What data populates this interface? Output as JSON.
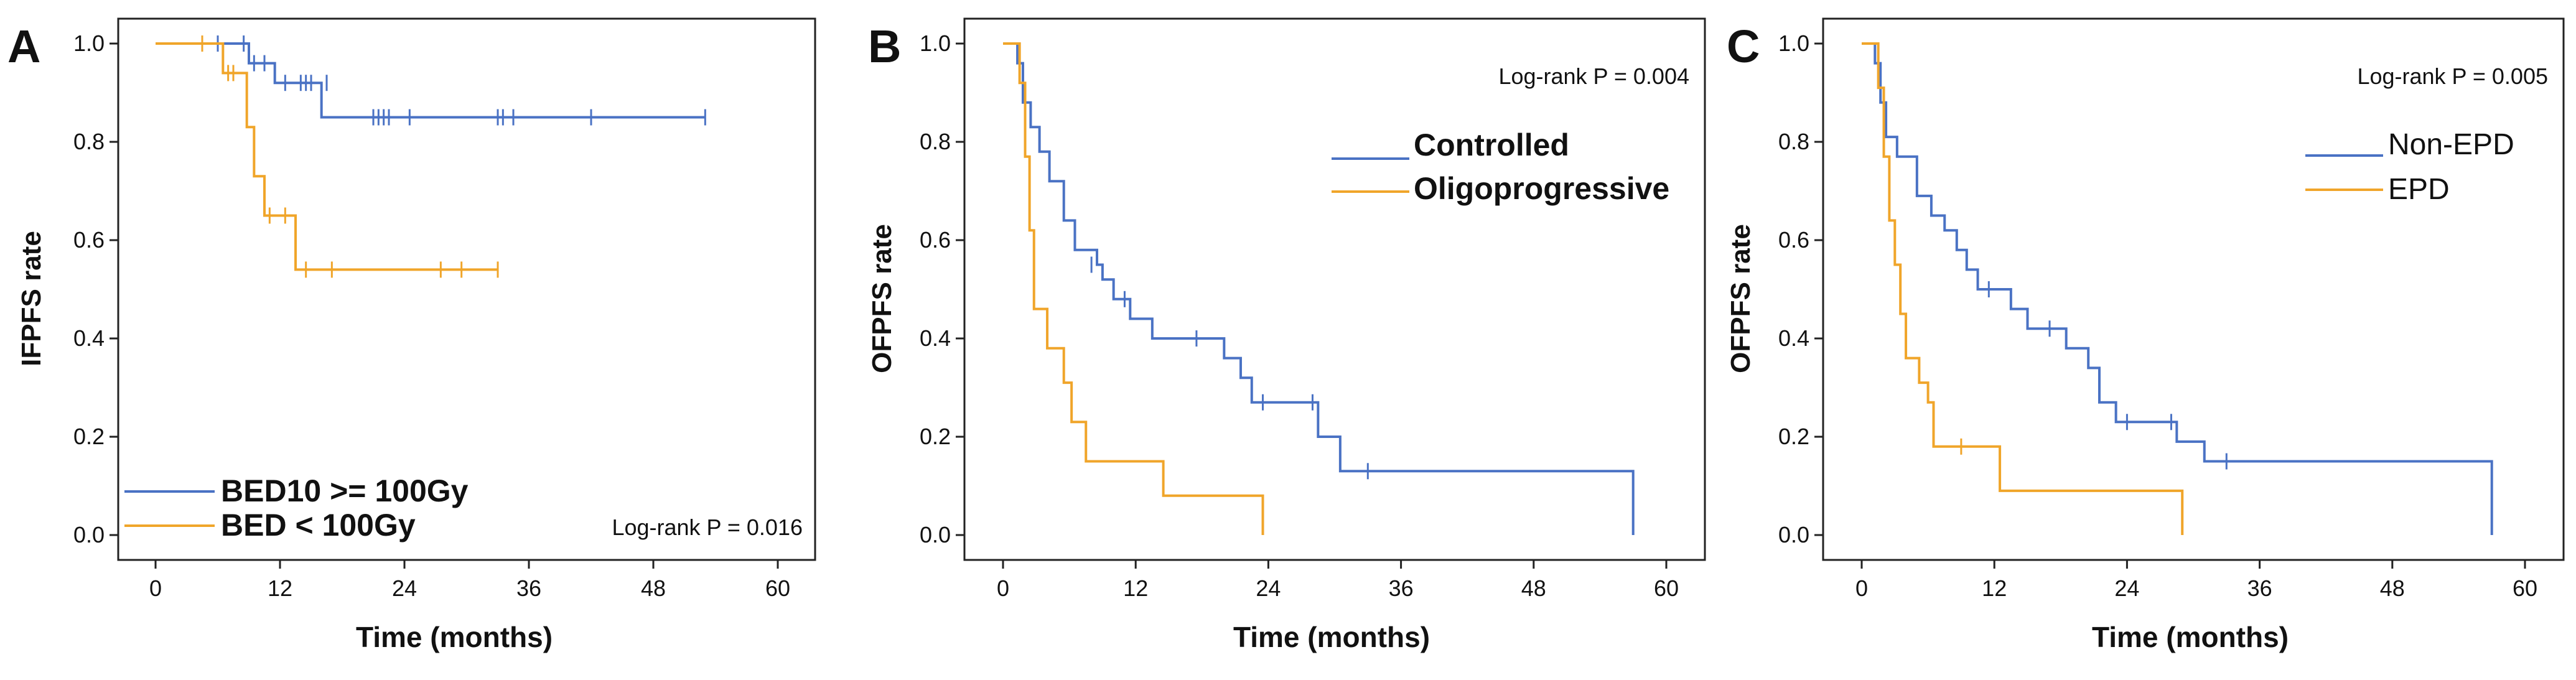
{
  "chart_data": [
    {
      "type": "line",
      "subtype": "kaplan-meier",
      "panel": "A",
      "xlabel": "Time (months)",
      "ylabel": "IFPFS rate",
      "xlim": [
        0,
        60
      ],
      "ylim": [
        0,
        1
      ],
      "xticks": [
        "0",
        "12",
        "24",
        "36",
        "48",
        "60"
      ],
      "yticks": [
        "0.0",
        "0.2",
        "0.4",
        "0.6",
        "0.8",
        "1.0"
      ],
      "pvalue": "Log-rank P = 0.016",
      "legend_position": "bottom-left",
      "series": [
        {
          "name": "BED10 >= 100Gy",
          "color": "#4a72c4",
          "steps": [
            [
              0,
              1.0
            ],
            [
              9,
              0.96
            ],
            [
              11.5,
              0.92
            ],
            [
              16,
              0.85
            ],
            [
              53,
              0.85
            ]
          ],
          "censors": [
            [
              6,
              1.0
            ],
            [
              8.5,
              1.0
            ],
            [
              9.5,
              0.96
            ],
            [
              10.5,
              0.96
            ],
            [
              12.5,
              0.92
            ],
            [
              14,
              0.92
            ],
            [
              14.5,
              0.92
            ],
            [
              15,
              0.92
            ],
            [
              16.5,
              0.92
            ],
            [
              21,
              0.85
            ],
            [
              21.5,
              0.85
            ],
            [
              22,
              0.85
            ],
            [
              22.5,
              0.85
            ],
            [
              24.5,
              0.85
            ],
            [
              33,
              0.85
            ],
            [
              33.5,
              0.85
            ],
            [
              34.5,
              0.85
            ],
            [
              42,
              0.85
            ],
            [
              53,
              0.85
            ]
          ]
        },
        {
          "name": "BED < 100Gy",
          "color": "#f0a52a",
          "steps": [
            [
              0,
              1.0
            ],
            [
              6.5,
              0.94
            ],
            [
              8.8,
              0.83
            ],
            [
              9.5,
              0.73
            ],
            [
              10.5,
              0.65
            ],
            [
              13.5,
              0.54
            ],
            [
              33,
              0.54
            ]
          ],
          "censors": [
            [
              4.5,
              1.0
            ],
            [
              7,
              0.94
            ],
            [
              7.5,
              0.94
            ],
            [
              11,
              0.65
            ],
            [
              12.5,
              0.65
            ],
            [
              14.5,
              0.54
            ],
            [
              17,
              0.54
            ],
            [
              27.5,
              0.54
            ],
            [
              29.5,
              0.54
            ],
            [
              33,
              0.54
            ]
          ]
        }
      ]
    },
    {
      "type": "line",
      "subtype": "kaplan-meier",
      "panel": "B",
      "xlabel": "Time (months)",
      "ylabel": "OFPFS rate",
      "xlim": [
        0,
        60
      ],
      "ylim": [
        0,
        1
      ],
      "xticks": [
        "0",
        "12",
        "24",
        "36",
        "48",
        "60"
      ],
      "yticks": [
        "0.0",
        "0.2",
        "0.4",
        "0.6",
        "0.8",
        "1.0"
      ],
      "pvalue": "Log-rank P = 0.004",
      "legend_position": "top-right",
      "series": [
        {
          "name": "Controlled",
          "color": "#4a72c4",
          "steps": [
            [
              0,
              1.0
            ],
            [
              1.3,
              0.96
            ],
            [
              1.8,
              0.88
            ],
            [
              2.5,
              0.83
            ],
            [
              3.3,
              0.78
            ],
            [
              4.2,
              0.72
            ],
            [
              5.5,
              0.64
            ],
            [
              6.5,
              0.58
            ],
            [
              8.5,
              0.55
            ],
            [
              9,
              0.52
            ],
            [
              10,
              0.48
            ],
            [
              11.5,
              0.44
            ],
            [
              13.5,
              0.4
            ],
            [
              20,
              0.36
            ],
            [
              21.5,
              0.32
            ],
            [
              22.5,
              0.27
            ],
            [
              28.5,
              0.2
            ],
            [
              30.5,
              0.13
            ],
            [
              57,
              0.0
            ]
          ],
          "censors": [
            [
              8,
              0.55
            ],
            [
              11,
              0.48
            ],
            [
              17.5,
              0.4
            ],
            [
              23.5,
              0.27
            ],
            [
              28,
              0.27
            ],
            [
              33,
              0.13
            ]
          ]
        },
        {
          "name": "Oligoprogressive",
          "color": "#f0a52a",
          "steps": [
            [
              0,
              1.0
            ],
            [
              1.5,
              0.92
            ],
            [
              2,
              0.77
            ],
            [
              2.4,
              0.62
            ],
            [
              2.8,
              0.46
            ],
            [
              4,
              0.38
            ],
            [
              5.5,
              0.31
            ],
            [
              6.2,
              0.23
            ],
            [
              7.5,
              0.15
            ],
            [
              14.5,
              0.08
            ],
            [
              23.5,
              0.0
            ]
          ],
          "censors": []
        }
      ]
    },
    {
      "type": "line",
      "subtype": "kaplan-meier",
      "panel": "C",
      "xlabel": "Time (months)",
      "ylabel": "OFPFS rate",
      "xlim": [
        0,
        60
      ],
      "ylim": [
        0,
        1
      ],
      "xticks": [
        "0",
        "12",
        "24",
        "36",
        "48",
        "60"
      ],
      "yticks": [
        "0.0",
        "0.2",
        "0.4",
        "0.6",
        "0.8",
        "1.0"
      ],
      "pvalue": "Log-rank P = 0.005",
      "legend_position": "top-right",
      "series": [
        {
          "name": "Non-EPD",
          "color": "#4a72c4",
          "steps": [
            [
              0,
              1.0
            ],
            [
              1.2,
              0.96
            ],
            [
              1.7,
              0.88
            ],
            [
              2.2,
              0.81
            ],
            [
              3.2,
              0.77
            ],
            [
              5,
              0.69
            ],
            [
              6.3,
              0.65
            ],
            [
              7.5,
              0.62
            ],
            [
              8.6,
              0.58
            ],
            [
              9.5,
              0.54
            ],
            [
              10.5,
              0.5
            ],
            [
              13.5,
              0.46
            ],
            [
              15,
              0.42
            ],
            [
              18.5,
              0.38
            ],
            [
              20.5,
              0.34
            ],
            [
              21.5,
              0.27
            ],
            [
              23,
              0.23
            ],
            [
              28.5,
              0.19
            ],
            [
              31,
              0.15
            ],
            [
              57,
              0.0
            ]
          ],
          "censors": [
            [
              11.5,
              0.5
            ],
            [
              17,
              0.42
            ],
            [
              24,
              0.23
            ],
            [
              28,
              0.23
            ],
            [
              33,
              0.15
            ]
          ]
        },
        {
          "name": "EPD",
          "color": "#f0a52a",
          "steps": [
            [
              0,
              1.0
            ],
            [
              1.5,
              0.91
            ],
            [
              2,
              0.77
            ],
            [
              2.5,
              0.64
            ],
            [
              3,
              0.55
            ],
            [
              3.5,
              0.45
            ],
            [
              4,
              0.36
            ],
            [
              5.2,
              0.31
            ],
            [
              6,
              0.27
            ],
            [
              6.5,
              0.18
            ],
            [
              12.5,
              0.09
            ],
            [
              29,
              0.0
            ]
          ],
          "censors": [
            [
              9,
              0.18
            ]
          ]
        }
      ]
    }
  ]
}
